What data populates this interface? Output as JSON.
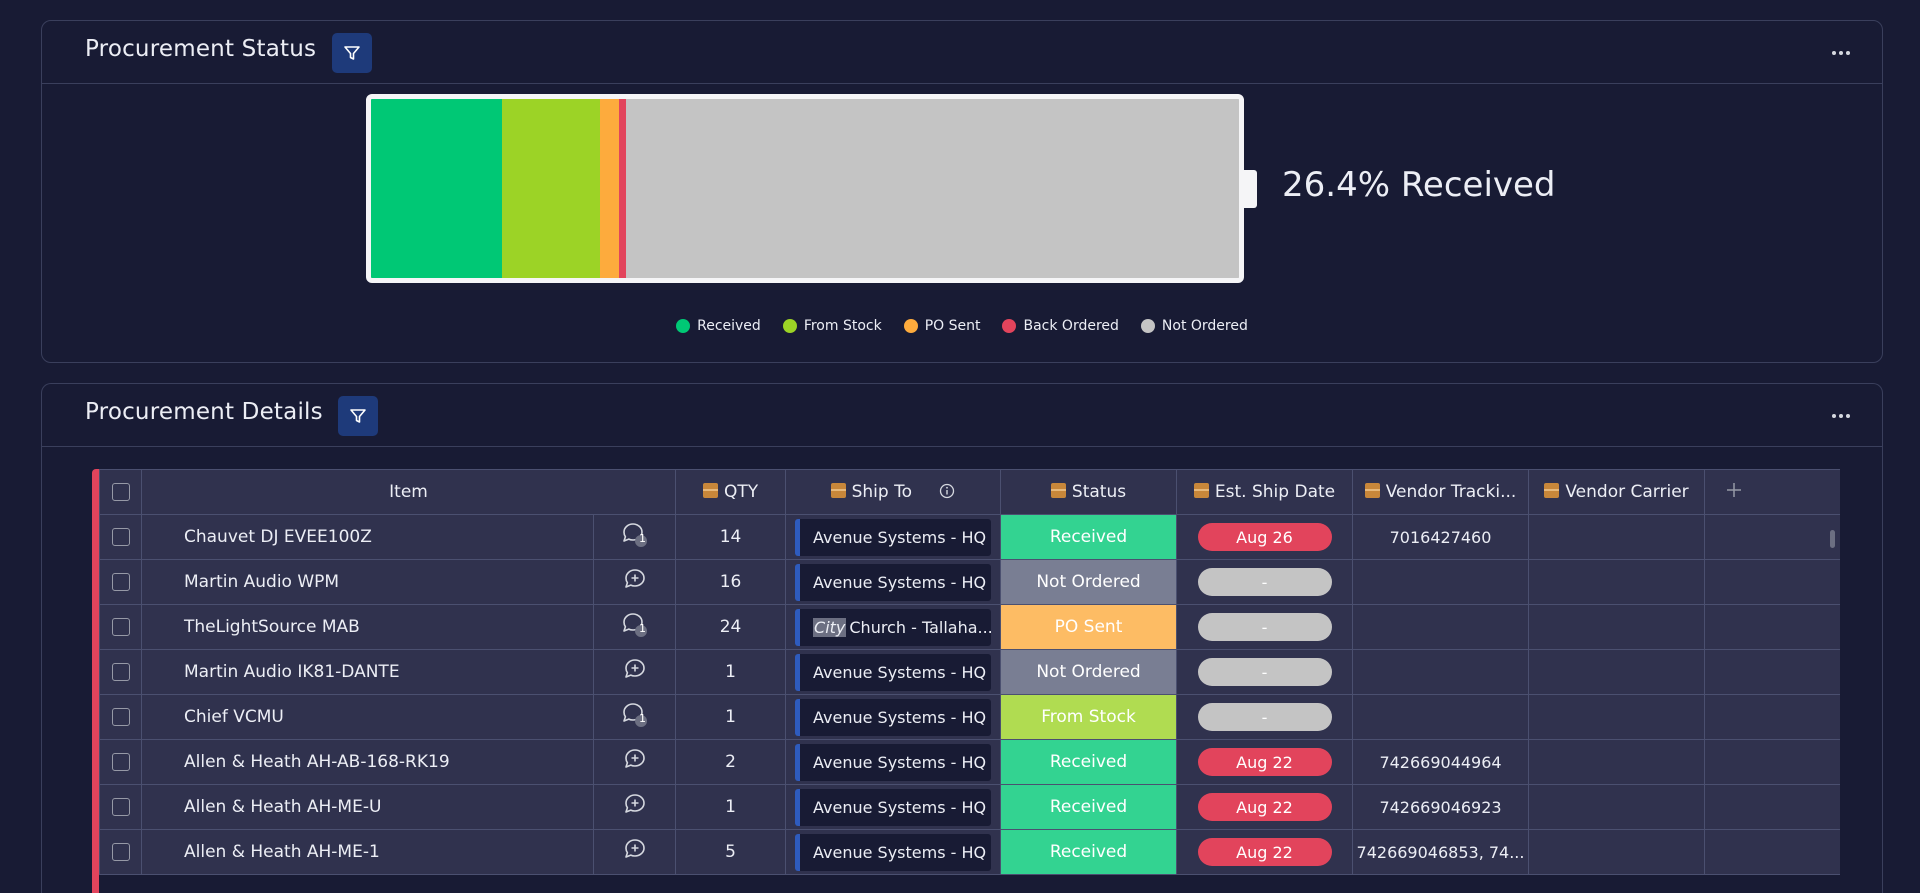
{
  "status_panel": {
    "title": "Procurement Status",
    "percent_label": "26.4% Received",
    "segments": [
      {
        "name": "Received",
        "color": "#00c875",
        "fraction": 0.151
      },
      {
        "name": "From Stock",
        "color": "#9cd326",
        "fraction": 0.113
      },
      {
        "name": "PO Sent",
        "color": "#fdab3d",
        "fraction": 0.022
      },
      {
        "name": "Back Ordered",
        "color": "#e2445c",
        "fraction": 0.008
      },
      {
        "name": "Not Ordered",
        "color": "#c4c4c4",
        "fraction": 0.706
      }
    ],
    "legend": [
      {
        "label": "Received",
        "color": "#00c875"
      },
      {
        "label": "From Stock",
        "color": "#9cd326"
      },
      {
        "label": "PO Sent",
        "color": "#fdab3d"
      },
      {
        "label": "Back Ordered",
        "color": "#e2445c"
      },
      {
        "label": "Not Ordered",
        "color": "#c4c4c4"
      }
    ]
  },
  "details_panel": {
    "title": "Procurement Details",
    "columns": {
      "item": "Item",
      "qty": "QTY",
      "ship_to": "Ship To",
      "status": "Status",
      "est_ship_date": "Est. Ship Date",
      "vendor_tracking": "Vendor Tracki...",
      "vendor_carrier": "Vendor Carrier"
    },
    "rows": [
      {
        "item": "Chauvet DJ EVEE100Z",
        "updates": "1",
        "qty": "14",
        "ship_to_pre": "",
        "ship_to": "Avenue Systems - HQ",
        "status": "Received",
        "status_color": "#33d391",
        "date": "Aug 26",
        "date_color": "#e2445c",
        "tracking": "7016427460",
        "carrier": ""
      },
      {
        "item": "Martin Audio WPM",
        "updates": "",
        "qty": "16",
        "ship_to_pre": "",
        "ship_to": "Avenue Systems - HQ",
        "status": "Not Ordered",
        "status_color": "#797e93",
        "date": "-",
        "date_color": "#c4c4c4",
        "tracking": "",
        "carrier": ""
      },
      {
        "item": "TheLightSource MAB",
        "updates": "1",
        "qty": "24",
        "ship_to_pre": "City",
        "ship_to": "Church - Tallaha...",
        "status": "PO Sent",
        "status_color": "#fdbc64",
        "date": "-",
        "date_color": "#c4c4c4",
        "tracking": "",
        "carrier": ""
      },
      {
        "item": "Martin Audio IK81-DANTE",
        "updates": "",
        "qty": "1",
        "ship_to_pre": "",
        "ship_to": "Avenue Systems - HQ",
        "status": "Not Ordered",
        "status_color": "#797e93",
        "date": "-",
        "date_color": "#c4c4c4",
        "tracking": "",
        "carrier": ""
      },
      {
        "item": "Chief VCMU",
        "updates": "1",
        "qty": "1",
        "ship_to_pre": "",
        "ship_to": "Avenue Systems - HQ",
        "status": "From Stock",
        "status_color": "#b0dc51",
        "date": "-",
        "date_color": "#c4c4c4",
        "tracking": "",
        "carrier": ""
      },
      {
        "item": "Allen & Heath AH-AB-168-RK19",
        "updates": "",
        "qty": "2",
        "ship_to_pre": "",
        "ship_to": "Avenue Systems - HQ",
        "status": "Received",
        "status_color": "#33d391",
        "date": "Aug 22",
        "date_color": "#e2445c",
        "tracking": "742669044964",
        "carrier": ""
      },
      {
        "item": "Allen & Heath AH-ME-U",
        "updates": "",
        "qty": "1",
        "ship_to_pre": "",
        "ship_to": "Avenue Systems - HQ",
        "status": "Received",
        "status_color": "#33d391",
        "date": "Aug 22",
        "date_color": "#e2445c",
        "tracking": "742669046923",
        "carrier": ""
      },
      {
        "item": "Allen & Heath AH-ME-1",
        "updates": "",
        "qty": "5",
        "ship_to_pre": "",
        "ship_to": "Avenue Systems - HQ",
        "status": "Received",
        "status_color": "#33d391",
        "date": "Aug 22",
        "date_color": "#e2445c",
        "tracking": "742669046853, 74...",
        "carrier": ""
      }
    ]
  }
}
